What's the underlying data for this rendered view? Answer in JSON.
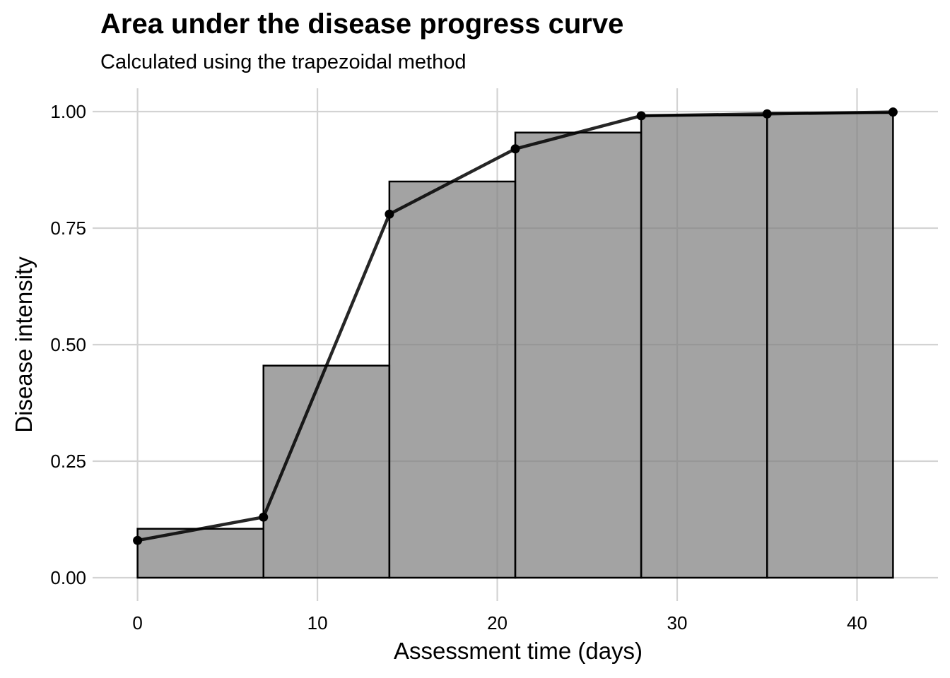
{
  "title": "Area under the disease progress curve",
  "subtitle": "Calculated using the trapezoidal method",
  "chart_data": {
    "type": "bar",
    "title": "Area under the disease progress curve",
    "subtitle": "Calculated using the trapezoidal method",
    "xlabel": "Assessment time (days)",
    "ylabel": "Disease intensity",
    "xlim": [
      -2.5,
      44.5
    ],
    "ylim": [
      -0.05,
      1.05
    ],
    "x_ticks": [
      0,
      10,
      20,
      30,
      40
    ],
    "x_tick_labels": [
      "0",
      "10",
      "20",
      "30",
      "40"
    ],
    "y_ticks": [
      0,
      0.25,
      0.5,
      0.75,
      1
    ],
    "y_tick_labels": [
      "0.00",
      "0.25",
      "0.50",
      "0.75",
      "1.00"
    ],
    "grid": true,
    "legend": "none",
    "bars": {
      "x_start": [
        0,
        7,
        14,
        21,
        28,
        35
      ],
      "x_end": [
        7,
        14,
        21,
        28,
        35,
        42
      ],
      "values": [
        0.105,
        0.455,
        0.85,
        0.955,
        0.992,
        0.997
      ],
      "fill": "#808080",
      "fill_opacity": 0.72,
      "edge_color": "#000000"
    },
    "series": [
      {
        "type": "line",
        "x": [
          0,
          7,
          14,
          21,
          28,
          35,
          42
        ],
        "y": [
          0.08,
          0.13,
          0.78,
          0.92,
          0.991,
          0.995,
          0.999
        ],
        "color": "#000000"
      }
    ]
  }
}
